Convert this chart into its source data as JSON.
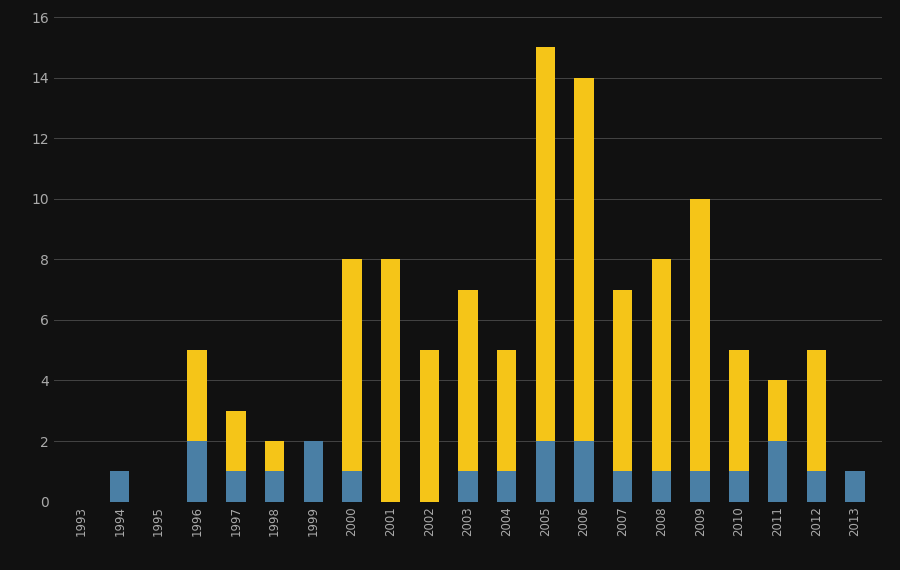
{
  "years": [
    1993,
    1994,
    1995,
    1996,
    1997,
    1998,
    1999,
    2000,
    2001,
    2002,
    2003,
    2004,
    2005,
    2006,
    2007,
    2008,
    2009,
    2010,
    2011,
    2012,
    2013
  ],
  "injuries": [
    0,
    0,
    0,
    3,
    2,
    1,
    0,
    7,
    8,
    5,
    6,
    4,
    13,
    12,
    6,
    7,
    9,
    4,
    2,
    4,
    0
  ],
  "fatalities": [
    0,
    1,
    0,
    2,
    1,
    1,
    2,
    1,
    0,
    0,
    1,
    1,
    2,
    2,
    1,
    1,
    1,
    1,
    2,
    1,
    1
  ],
  "injury_color": "#F5C518",
  "fatality_color": "#4A7FA5",
  "background_color": "#111111",
  "grid_color": "#444444",
  "text_color": "#aaaaaa",
  "ylim": [
    0,
    16
  ],
  "yticks": [
    0,
    2,
    4,
    6,
    8,
    10,
    12,
    14,
    16
  ],
  "bar_width": 0.5
}
